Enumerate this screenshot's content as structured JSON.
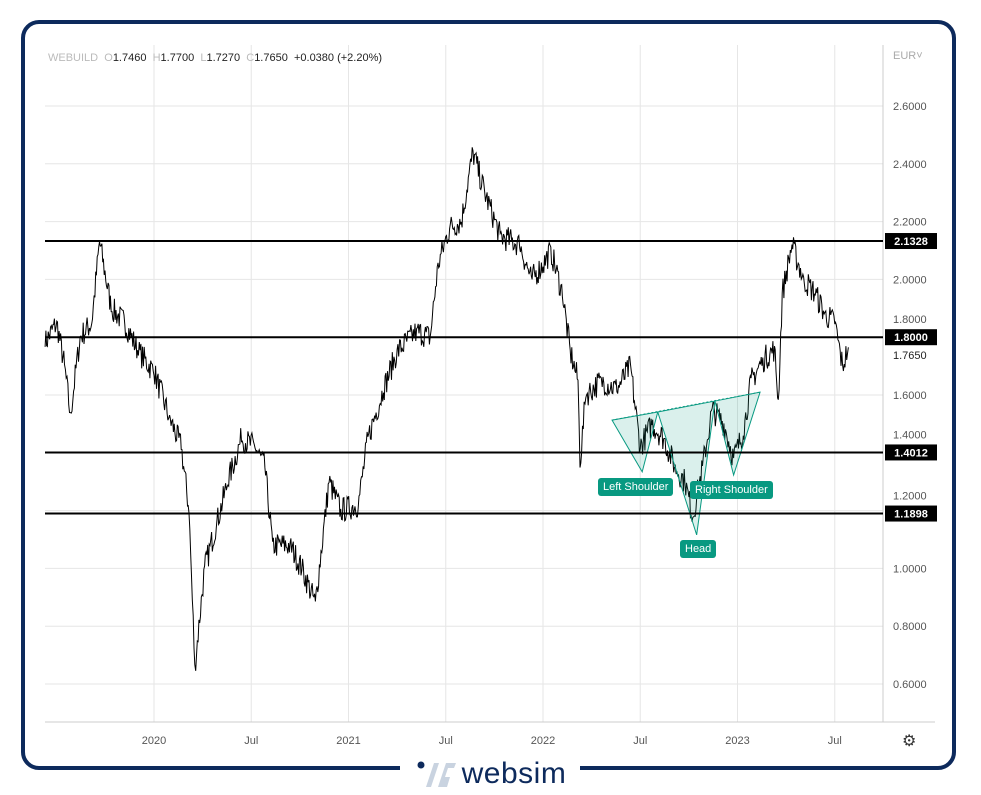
{
  "header": {
    "symbol": "WEBUILD",
    "open_key": "O",
    "open": "1.7460",
    "high_key": "H",
    "high": "1.7700",
    "low_key": "L",
    "low": "1.7270",
    "close_key": "C",
    "close": "1.7650",
    "change": "+0.0380 (+2.20%)",
    "currency": "EUR"
  },
  "settings_icon": "gear-icon",
  "brand": {
    "name": "websim",
    "color": "#0d2a5c"
  },
  "chart_data": {
    "type": "line",
    "title": "",
    "xlabel": "",
    "ylabel": "",
    "x_ticks": [
      {
        "t": 2020,
        "label": "2020"
      },
      {
        "t": 2020.5,
        "label": "Jul"
      },
      {
        "t": 2021,
        "label": "2021"
      },
      {
        "t": 2021.5,
        "label": "Jul"
      },
      {
        "t": 2022,
        "label": "2022"
      },
      {
        "t": 2022.5,
        "label": "Jul"
      },
      {
        "t": 2023,
        "label": "2023"
      },
      {
        "t": 2023.5,
        "label": "Jul"
      }
    ],
    "xlim": [
      2019.44,
      2023.75
    ],
    "y_ticks": [
      "0.6000",
      "0.8000",
      "1.0000",
      "1.2000",
      "1.4000",
      "1.6000",
      "1.8000",
      "2.0000",
      "2.2000",
      "2.4000",
      "2.6000"
    ],
    "ylim": [
      0.48,
      2.8
    ],
    "grid": true,
    "series_color": "#000000",
    "price_path": [
      [
        2019.44,
        1.78
      ],
      [
        2019.5,
        1.85
      ],
      [
        2019.54,
        1.7
      ],
      [
        2019.57,
        1.53
      ],
      [
        2019.62,
        1.8
      ],
      [
        2019.68,
        1.85
      ],
      [
        2019.72,
        2.13
      ],
      [
        2019.78,
        1.9
      ],
      [
        2019.85,
        1.85
      ],
      [
        2019.92,
        1.75
      ],
      [
        2020.0,
        1.68
      ],
      [
        2020.08,
        1.52
      ],
      [
        2020.14,
        1.42
      ],
      [
        2020.18,
        1.2
      ],
      [
        2020.21,
        0.66
      ],
      [
        2020.26,
        1.0
      ],
      [
        2020.32,
        1.15
      ],
      [
        2020.38,
        1.3
      ],
      [
        2020.45,
        1.45
      ],
      [
        2020.52,
        1.42
      ],
      [
        2020.57,
        1.35
      ],
      [
        2020.61,
        1.08
      ],
      [
        2020.7,
        1.08
      ],
      [
        2020.76,
        1.0
      ],
      [
        2020.83,
        0.88
      ],
      [
        2020.9,
        1.3
      ],
      [
        2020.96,
        1.2
      ],
      [
        2021.05,
        1.22
      ],
      [
        2021.1,
        1.45
      ],
      [
        2021.18,
        1.62
      ],
      [
        2021.25,
        1.75
      ],
      [
        2021.35,
        1.82
      ],
      [
        2021.42,
        1.8
      ],
      [
        2021.46,
        2.05
      ],
      [
        2021.52,
        2.18
      ],
      [
        2021.58,
        2.2
      ],
      [
        2021.64,
        2.44
      ],
      [
        2021.7,
        2.3
      ],
      [
        2021.78,
        2.15
      ],
      [
        2021.88,
        2.12
      ],
      [
        2021.94,
        2.0
      ],
      [
        2022.0,
        2.05
      ],
      [
        2022.04,
        2.1
      ],
      [
        2022.1,
        1.95
      ],
      [
        2022.14,
        1.75
      ],
      [
        2022.18,
        1.65
      ],
      [
        2022.19,
        1.36
      ],
      [
        2022.22,
        1.6
      ],
      [
        2022.3,
        1.65
      ],
      [
        2022.38,
        1.62
      ],
      [
        2022.45,
        1.7
      ],
      [
        2022.47,
        1.58
      ],
      [
        2022.5,
        1.42
      ],
      [
        2022.56,
        1.5
      ],
      [
        2022.62,
        1.45
      ],
      [
        2022.68,
        1.35
      ],
      [
        2022.73,
        1.3
      ],
      [
        2022.77,
        1.18
      ],
      [
        2022.82,
        1.35
      ],
      [
        2022.87,
        1.55
      ],
      [
        2022.93,
        1.5
      ],
      [
        2022.98,
        1.38
      ],
      [
        2023.03,
        1.47
      ],
      [
        2023.07,
        1.65
      ],
      [
        2023.13,
        1.72
      ],
      [
        2023.19,
        1.76
      ],
      [
        2023.21,
        1.58
      ],
      [
        2023.23,
        1.95
      ],
      [
        2023.28,
        2.12
      ],
      [
        2023.34,
        2.0
      ],
      [
        2023.4,
        1.95
      ],
      [
        2023.45,
        1.88
      ],
      [
        2023.5,
        1.85
      ],
      [
        2023.54,
        1.7
      ],
      [
        2023.57,
        1.765
      ]
    ],
    "levels": [
      {
        "value": 2.1328,
        "label": "2.1328"
      },
      {
        "value": 1.8,
        "label": "1.8000"
      },
      {
        "value": 1.4012,
        "label": "1.4012"
      },
      {
        "value": 1.1898,
        "label": "1.1898"
      }
    ],
    "last_price": {
      "value": 1.765,
      "label": "1.7650"
    },
    "pattern": {
      "name": "Head and Shoulders (inverse)",
      "color": "#089981",
      "neckline": [
        [
          2022.355,
          1.513
        ],
        [
          2023.116,
          1.61
        ]
      ],
      "parts": [
        {
          "label": "Left Shoulder",
          "points": [
            [
              2022.355,
              1.513
            ],
            [
              2022.59,
              1.541
            ],
            [
              2022.51,
              1.334
            ]
          ]
        },
        {
          "label": "Head",
          "points": [
            [
              2022.59,
              1.541
            ],
            [
              2022.884,
              1.579
            ],
            [
              2022.79,
              1.116
            ]
          ]
        },
        {
          "label": "Right Shoulder",
          "points": [
            [
              2022.884,
              1.579
            ],
            [
              2023.116,
              1.61
            ],
            [
              2022.98,
              1.323
            ]
          ]
        }
      ]
    }
  }
}
